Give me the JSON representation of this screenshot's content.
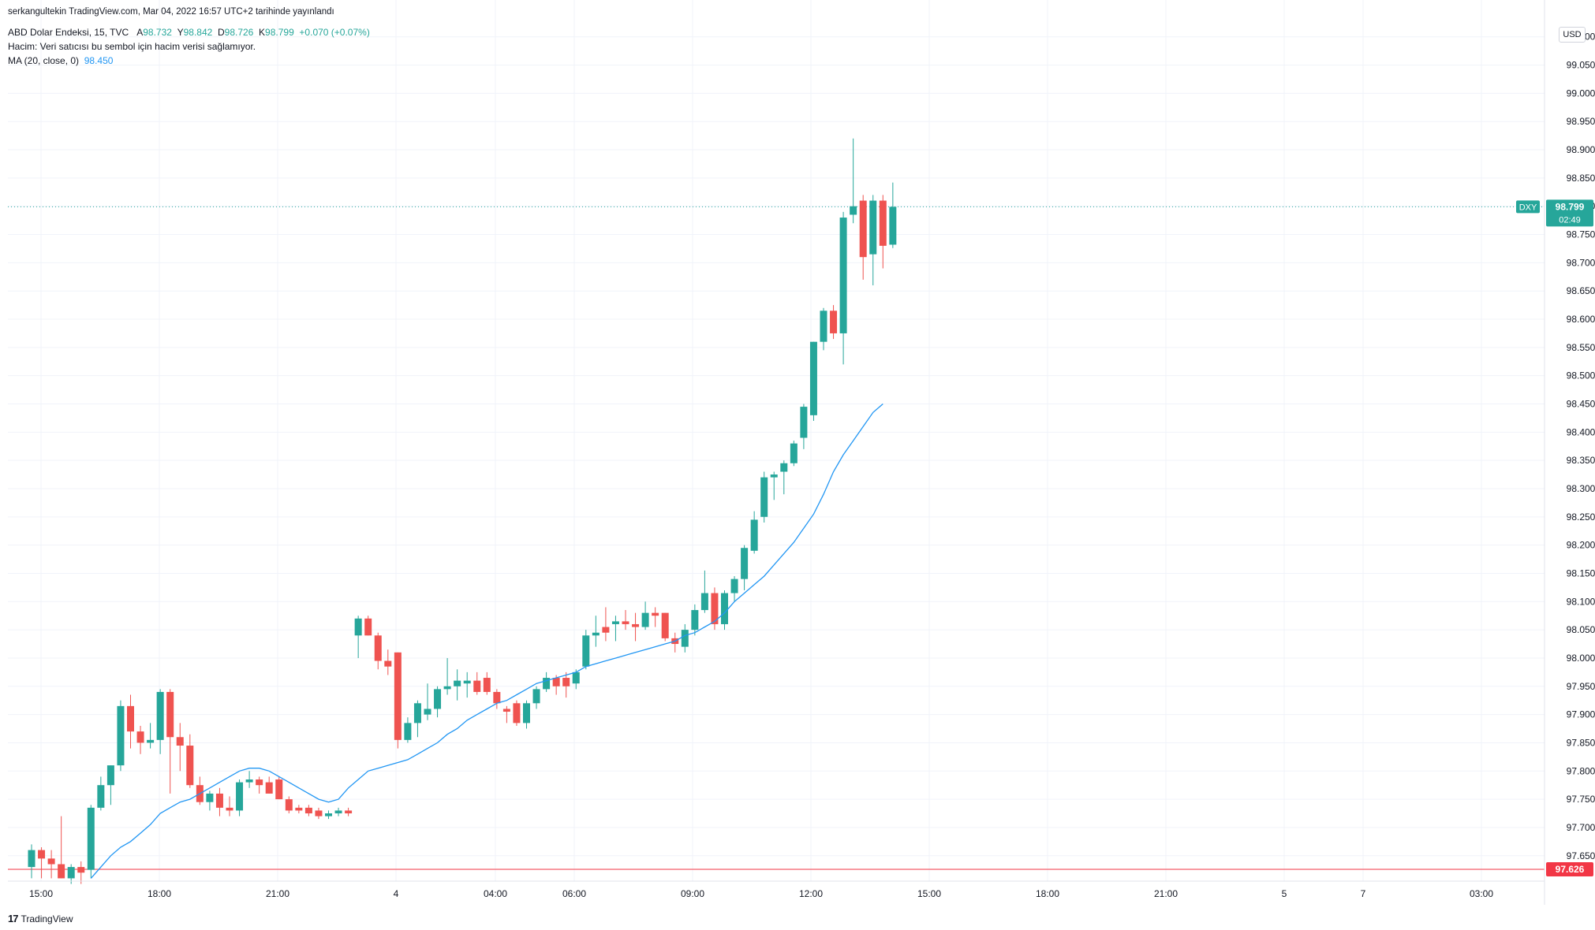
{
  "header": {
    "publisher": "serkangultekin TradingView.com, Mar 04, 2022 16:57 UTC+2 tarihinde yayınlandı",
    "symbol": "ABD Dolar Endeksi, 15, TVC",
    "ohlc": {
      "o_label": "A",
      "o": "98.732",
      "h_label": "Y",
      "h": "98.842",
      "l_label": "D",
      "l": "98.726",
      "c_label": "K",
      "c": "98.799",
      "change": "+0.070 (+0.07%)"
    },
    "volume_note": "Hacim: Veri satıcısı bu sembol için hacim verisi sağlamıyor.",
    "ma_label": "MA (20, close, 0)",
    "ma_value": "98.450"
  },
  "currency": "USD",
  "brand": "TradingView",
  "brand_mark": "17",
  "colors": {
    "up": "#26a69a",
    "down": "#ef5350",
    "ma": "#2196f3",
    "grid": "#f0f3fa",
    "axis_text": "#131722",
    "price_line": "#26a69a",
    "low_line": "#f23645"
  },
  "chart_data": {
    "type": "candlestick",
    "ylim": [
      97.605,
      99.115
    ],
    "y_ticks": [
      "99.100",
      "99.050",
      "99.000",
      "98.950",
      "98.900",
      "98.850",
      "98.800",
      "98.750",
      "98.700",
      "98.650",
      "98.600",
      "98.550",
      "98.500",
      "98.450",
      "98.400",
      "98.350",
      "98.300",
      "98.250",
      "98.200",
      "98.150",
      "98.100",
      "98.050",
      "98.000",
      "97.950",
      "97.900",
      "97.850",
      "97.800",
      "97.750",
      "97.700",
      "97.650"
    ],
    "x_labels": [
      "15:00",
      "18:00",
      "21:00",
      "4",
      "04:00",
      "06:00",
      "09:00",
      "12:00",
      "15:00",
      "18:00",
      "21:00",
      "5",
      "7",
      "03:00"
    ],
    "last_price": {
      "symbol": "DXY",
      "price": "98.799",
      "countdown": "02:49"
    },
    "low_line_price": "97.626",
    "candles": [
      {
        "o": 97.63,
        "h": 97.67,
        "l": 97.61,
        "c": 97.66
      },
      {
        "o": 97.66,
        "h": 97.665,
        "l": 97.61,
        "c": 97.645
      },
      {
        "o": 97.645,
        "h": 97.66,
        "l": 97.61,
        "c": 97.635
      },
      {
        "o": 97.635,
        "h": 97.72,
        "l": 97.61,
        "c": 97.61
      },
      {
        "o": 97.61,
        "h": 97.635,
        "l": 97.6,
        "c": 97.63
      },
      {
        "o": 97.63,
        "h": 97.64,
        "l": 97.6,
        "c": 97.62
      },
      {
        "o": 97.625,
        "h": 97.74,
        "l": 97.61,
        "c": 97.735
      },
      {
        "o": 97.735,
        "h": 97.79,
        "l": 97.73,
        "c": 97.775
      },
      {
        "o": 97.775,
        "h": 97.81,
        "l": 97.74,
        "c": 97.81
      },
      {
        "o": 97.81,
        "h": 97.925,
        "l": 97.8,
        "c": 97.915
      },
      {
        "o": 97.915,
        "h": 97.935,
        "l": 97.84,
        "c": 97.87
      },
      {
        "o": 97.87,
        "h": 97.88,
        "l": 97.83,
        "c": 97.85
      },
      {
        "o": 97.85,
        "h": 97.885,
        "l": 97.84,
        "c": 97.855
      },
      {
        "o": 97.855,
        "h": 97.945,
        "l": 97.83,
        "c": 97.94
      },
      {
        "o": 97.94,
        "h": 97.945,
        "l": 97.76,
        "c": 97.86
      },
      {
        "o": 97.86,
        "h": 97.885,
        "l": 97.8,
        "c": 97.845
      },
      {
        "o": 97.845,
        "h": 97.865,
        "l": 97.77,
        "c": 97.775
      },
      {
        "o": 97.775,
        "h": 97.79,
        "l": 97.74,
        "c": 97.745
      },
      {
        "o": 97.745,
        "h": 97.765,
        "l": 97.73,
        "c": 97.76
      },
      {
        "o": 97.76,
        "h": 97.77,
        "l": 97.72,
        "c": 97.735
      },
      {
        "o": 97.735,
        "h": 97.755,
        "l": 97.72,
        "c": 97.73
      },
      {
        "o": 97.73,
        "h": 97.785,
        "l": 97.72,
        "c": 97.78
      },
      {
        "o": 97.78,
        "h": 97.8,
        "l": 97.77,
        "c": 97.785
      },
      {
        "o": 97.785,
        "h": 97.79,
        "l": 97.76,
        "c": 97.775
      },
      {
        "o": 97.78,
        "h": 97.79,
        "l": 97.76,
        "c": 97.76
      },
      {
        "o": 97.785,
        "h": 97.79,
        "l": 97.75,
        "c": 97.75
      },
      {
        "o": 97.75,
        "h": 97.755,
        "l": 97.725,
        "c": 97.73
      },
      {
        "o": 97.735,
        "h": 97.74,
        "l": 97.725,
        "c": 97.73
      },
      {
        "o": 97.735,
        "h": 97.74,
        "l": 97.72,
        "c": 97.725
      },
      {
        "o": 97.73,
        "h": 97.735,
        "l": 97.715,
        "c": 97.72
      },
      {
        "o": 97.72,
        "h": 97.73,
        "l": 97.715,
        "c": 97.725
      },
      {
        "o": 97.725,
        "h": 97.735,
        "l": 97.72,
        "c": 97.73
      },
      {
        "o": 97.73,
        "h": 97.735,
        "l": 97.72,
        "c": 97.725
      },
      {
        "o": 98.04,
        "h": 98.075,
        "l": 98.0,
        "c": 98.07
      },
      {
        "o": 98.07,
        "h": 98.075,
        "l": 98.04,
        "c": 98.04
      },
      {
        "o": 98.04,
        "h": 98.045,
        "l": 97.98,
        "c": 97.995
      },
      {
        "o": 97.995,
        "h": 98.015,
        "l": 97.97,
        "c": 97.985
      },
      {
        "o": 98.01,
        "h": 98.01,
        "l": 97.84,
        "c": 97.855
      },
      {
        "o": 97.855,
        "h": 97.895,
        "l": 97.85,
        "c": 97.885
      },
      {
        "o": 97.885,
        "h": 97.925,
        "l": 97.86,
        "c": 97.92
      },
      {
        "o": 97.9,
        "h": 97.955,
        "l": 97.89,
        "c": 97.91
      },
      {
        "o": 97.91,
        "h": 97.95,
        "l": 97.895,
        "c": 97.945
      },
      {
        "o": 97.945,
        "h": 98.0,
        "l": 97.935,
        "c": 97.95
      },
      {
        "o": 97.95,
        "h": 97.98,
        "l": 97.925,
        "c": 97.96
      },
      {
        "o": 97.955,
        "h": 97.975,
        "l": 97.93,
        "c": 97.96
      },
      {
        "o": 97.96,
        "h": 97.975,
        "l": 97.935,
        "c": 97.94
      },
      {
        "o": 97.965,
        "h": 97.975,
        "l": 97.935,
        "c": 97.94
      },
      {
        "o": 97.94,
        "h": 97.945,
        "l": 97.91,
        "c": 97.92
      },
      {
        "o": 97.91,
        "h": 97.915,
        "l": 97.885,
        "c": 97.905
      },
      {
        "o": 97.92,
        "h": 97.925,
        "l": 97.88,
        "c": 97.885
      },
      {
        "o": 97.885,
        "h": 97.925,
        "l": 97.875,
        "c": 97.92
      },
      {
        "o": 97.92,
        "h": 97.95,
        "l": 97.91,
        "c": 97.945
      },
      {
        "o": 97.945,
        "h": 97.975,
        "l": 97.94,
        "c": 97.965
      },
      {
        "o": 97.965,
        "h": 97.97,
        "l": 97.935,
        "c": 97.95
      },
      {
        "o": 97.965,
        "h": 97.975,
        "l": 97.93,
        "c": 97.95
      },
      {
        "o": 97.955,
        "h": 97.98,
        "l": 97.945,
        "c": 97.975
      },
      {
        "o": 97.985,
        "h": 98.05,
        "l": 97.98,
        "c": 98.04
      },
      {
        "o": 98.04,
        "h": 98.075,
        "l": 98.02,
        "c": 98.045
      },
      {
        "o": 98.055,
        "h": 98.09,
        "l": 98.03,
        "c": 98.045
      },
      {
        "o": 98.06,
        "h": 98.075,
        "l": 98.03,
        "c": 98.065
      },
      {
        "o": 98.065,
        "h": 98.085,
        "l": 98.05,
        "c": 98.06
      },
      {
        "o": 98.06,
        "h": 98.08,
        "l": 98.03,
        "c": 98.055
      },
      {
        "o": 98.055,
        "h": 98.1,
        "l": 98.05,
        "c": 98.08
      },
      {
        "o": 98.08,
        "h": 98.09,
        "l": 98.055,
        "c": 98.075
      },
      {
        "o": 98.08,
        "h": 98.08,
        "l": 98.03,
        "c": 98.035
      },
      {
        "o": 98.035,
        "h": 98.045,
        "l": 98.01,
        "c": 98.025
      },
      {
        "o": 98.02,
        "h": 98.06,
        "l": 98.01,
        "c": 98.05
      },
      {
        "o": 98.05,
        "h": 98.095,
        "l": 98.04,
        "c": 98.085
      },
      {
        "o": 98.085,
        "h": 98.155,
        "l": 98.08,
        "c": 98.115
      },
      {
        "o": 98.115,
        "h": 98.125,
        "l": 98.05,
        "c": 98.06
      },
      {
        "o": 98.06,
        "h": 98.12,
        "l": 98.05,
        "c": 98.115
      },
      {
        "o": 98.115,
        "h": 98.145,
        "l": 98.1,
        "c": 98.14
      },
      {
        "o": 98.14,
        "h": 98.2,
        "l": 98.12,
        "c": 98.195
      },
      {
        "o": 98.19,
        "h": 98.26,
        "l": 98.185,
        "c": 98.245
      },
      {
        "o": 98.25,
        "h": 98.33,
        "l": 98.24,
        "c": 98.32
      },
      {
        "o": 98.32,
        "h": 98.33,
        "l": 98.28,
        "c": 98.325
      },
      {
        "o": 98.33,
        "h": 98.35,
        "l": 98.29,
        "c": 98.345
      },
      {
        "o": 98.345,
        "h": 98.385,
        "l": 98.34,
        "c": 98.38
      },
      {
        "o": 98.39,
        "h": 98.45,
        "l": 98.37,
        "c": 98.445
      },
      {
        "o": 98.43,
        "h": 98.56,
        "l": 98.42,
        "c": 98.56
      },
      {
        "o": 98.56,
        "h": 98.62,
        "l": 98.545,
        "c": 98.615
      },
      {
        "o": 98.615,
        "h": 98.625,
        "l": 98.565,
        "c": 98.575
      },
      {
        "o": 98.575,
        "h": 98.79,
        "l": 98.52,
        "c": 98.78
      },
      {
        "o": 98.785,
        "h": 98.92,
        "l": 98.77,
        "c": 98.8
      },
      {
        "o": 98.81,
        "h": 98.82,
        "l": 98.67,
        "c": 98.71
      },
      {
        "o": 98.715,
        "h": 98.82,
        "l": 98.66,
        "c": 98.81
      },
      {
        "o": 98.81,
        "h": 98.82,
        "l": 98.69,
        "c": 98.73
      },
      {
        "o": 98.732,
        "h": 98.842,
        "l": 98.726,
        "c": 98.799
      }
    ],
    "ma_series": [
      [
        6,
        97.61
      ],
      [
        7,
        97.63
      ],
      [
        8,
        97.65
      ],
      [
        9,
        97.665
      ],
      [
        10,
        97.675
      ],
      [
        11,
        97.69
      ],
      [
        12,
        97.705
      ],
      [
        13,
        97.725
      ],
      [
        14,
        97.735
      ],
      [
        15,
        97.745
      ],
      [
        16,
        97.75
      ],
      [
        17,
        97.76
      ],
      [
        18,
        97.77
      ],
      [
        19,
        97.78
      ],
      [
        20,
        97.79
      ],
      [
        21,
        97.8
      ],
      [
        22,
        97.805
      ],
      [
        23,
        97.805
      ],
      [
        24,
        97.8
      ],
      [
        25,
        97.79
      ],
      [
        26,
        97.78
      ],
      [
        27,
        97.77
      ],
      [
        28,
        97.76
      ],
      [
        29,
        97.75
      ],
      [
        30,
        97.745
      ],
      [
        31,
        97.75
      ],
      [
        32,
        97.77
      ],
      [
        33,
        97.785
      ],
      [
        34,
        97.8
      ],
      [
        35,
        97.805
      ],
      [
        36,
        97.81
      ],
      [
        37,
        97.815
      ],
      [
        38,
        97.82
      ],
      [
        39,
        97.83
      ],
      [
        40,
        97.84
      ],
      [
        41,
        97.85
      ],
      [
        42,
        97.865
      ],
      [
        43,
        97.875
      ],
      [
        44,
        97.89
      ],
      [
        45,
        97.9
      ],
      [
        46,
        97.91
      ],
      [
        47,
        97.92
      ],
      [
        48,
        97.925
      ],
      [
        49,
        97.935
      ],
      [
        50,
        97.945
      ],
      [
        51,
        97.955
      ],
      [
        52,
        97.96
      ],
      [
        53,
        97.965
      ],
      [
        54,
        97.97
      ],
      [
        55,
        97.975
      ],
      [
        56,
        97.985
      ],
      [
        57,
        97.99
      ],
      [
        58,
        97.995
      ],
      [
        59,
        98.0
      ],
      [
        60,
        98.005
      ],
      [
        61,
        98.01
      ],
      [
        62,
        98.015
      ],
      [
        63,
        98.02
      ],
      [
        64,
        98.025
      ],
      [
        65,
        98.03
      ],
      [
        66,
        98.04
      ],
      [
        67,
        98.045
      ],
      [
        68,
        98.055
      ],
      [
        69,
        98.065
      ],
      [
        70,
        98.08
      ],
      [
        71,
        98.1
      ],
      [
        72,
        98.115
      ],
      [
        73,
        98.13
      ],
      [
        74,
        98.145
      ],
      [
        75,
        98.165
      ],
      [
        76,
        98.185
      ],
      [
        77,
        98.205
      ],
      [
        78,
        98.23
      ],
      [
        79,
        98.255
      ],
      [
        80,
        98.29
      ],
      [
        81,
        98.33
      ],
      [
        82,
        98.36
      ],
      [
        83,
        98.385
      ],
      [
        84,
        98.41
      ],
      [
        85,
        98.435
      ],
      [
        86,
        98.45
      ]
    ]
  }
}
